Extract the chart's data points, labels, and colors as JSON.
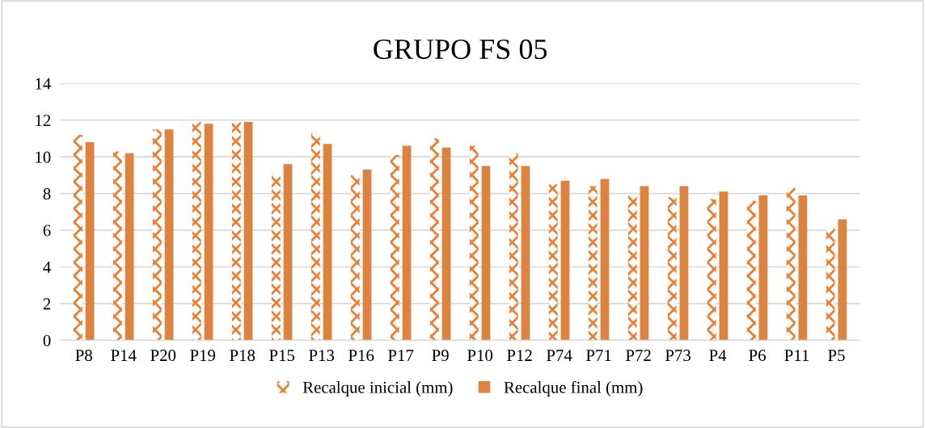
{
  "chart_data": {
    "type": "bar",
    "title": "GRUPO FS 05",
    "categories": [
      "P8",
      "P14",
      "P20",
      "P19",
      "P18",
      "P15",
      "P13",
      "P16",
      "P17",
      "P9",
      "P10",
      "P12",
      "P74",
      "P71",
      "P72",
      "P73",
      "P4",
      "P6",
      "P11",
      "P5"
    ],
    "series": [
      {
        "name": "Recalque inicial (mm)",
        "color": "#ed7d31",
        "values": [
          11.2,
          10.3,
          11.5,
          11.9,
          11.9,
          9.1,
          11.3,
          9.0,
          10.1,
          11.0,
          10.6,
          10.2,
          8.5,
          8.4,
          7.9,
          7.8,
          7.7,
          7.6,
          8.3,
          6.1
        ]
      },
      {
        "name": "Recalque final (mm)",
        "color": "#dc843f",
        "values": [
          10.8,
          10.2,
          11.5,
          11.8,
          11.9,
          9.6,
          10.7,
          9.3,
          10.6,
          10.5,
          9.5,
          9.5,
          8.7,
          8.8,
          8.4,
          8.4,
          8.1,
          7.9,
          7.9,
          6.6
        ]
      }
    ],
    "ylim": [
      0,
      14
    ],
    "yticks": [
      0,
      2,
      4,
      6,
      8,
      10,
      12,
      14
    ],
    "grid": "y",
    "legend": "bottom"
  }
}
